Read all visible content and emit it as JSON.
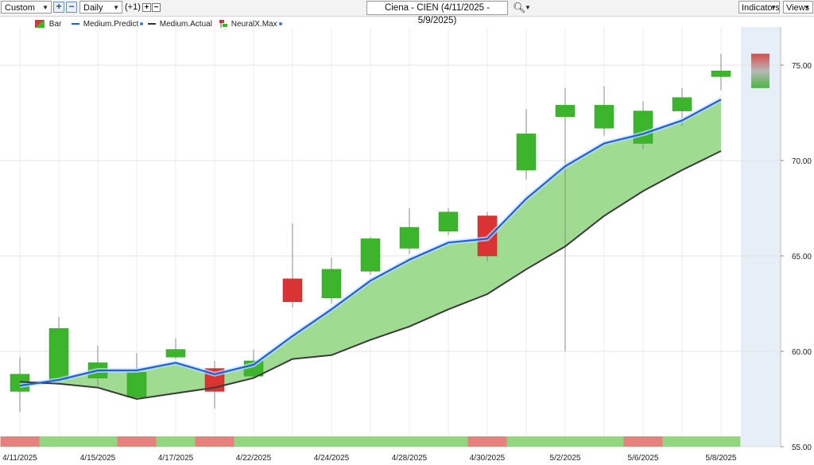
{
  "toolbar": {
    "period_select": "Custom",
    "interval_select": "Daily",
    "offset_label": "(+1)",
    "title": "Ciena - CIEN (4/11/2025 - 5/9/2025)",
    "indicators_button": "Indicators",
    "views_button": "Views"
  },
  "legend": [
    {
      "label": "Bar",
      "icon": "bar-swatch-icon"
    },
    {
      "label": "Medium.Predict",
      "color": "#1f5fe0"
    },
    {
      "label": "Medium.Actual",
      "color": "#333333"
    },
    {
      "label": "NeuralX.Max",
      "icon": "neuralx-swatch-icon"
    }
  ],
  "colors": {
    "up": "#3cb52c",
    "down": "#d93333",
    "predict": "#1f5fe0",
    "actual": "#3a3a3a",
    "band_fill": "#9ad98a",
    "signal_up": "#92d67f",
    "signal_down": "#e88080",
    "forecast_bg": "#e6eef7"
  },
  "chart_data": {
    "type": "candlestick",
    "ylim": [
      55,
      77
    ],
    "y_ticks": [
      "55.00",
      "60.00",
      "65.00",
      "70.00",
      "75.00"
    ],
    "x_tick_labels": [
      "4/11/2025",
      "4/15/2025",
      "4/17/2025",
      "4/22/2025",
      "4/24/2025",
      "4/28/2025",
      "4/30/2025",
      "5/2/2025",
      "5/6/2025",
      "5/8/2025"
    ],
    "x_tick_label_index": [
      0,
      2,
      4,
      6,
      8,
      10,
      12,
      14,
      16,
      18
    ],
    "candles": [
      {
        "o": 57.9,
        "h": 59.7,
        "l": 56.8,
        "c": 58.8
      },
      {
        "o": 58.5,
        "h": 61.8,
        "l": 58.3,
        "c": 61.2
      },
      {
        "o": 58.6,
        "h": 60.3,
        "l": 58.2,
        "c": 59.4
      },
      {
        "o": 57.6,
        "h": 59.9,
        "l": 57.5,
        "c": 58.9
      },
      {
        "o": 59.7,
        "h": 60.7,
        "l": 59.6,
        "c": 60.1
      },
      {
        "o": 59.1,
        "h": 59.5,
        "l": 57.0,
        "c": 57.9
      },
      {
        "o": 58.7,
        "h": 60.1,
        "l": 58.6,
        "c": 59.5
      },
      {
        "o": 63.8,
        "h": 66.7,
        "l": 62.3,
        "c": 62.6
      },
      {
        "o": 62.8,
        "h": 64.9,
        "l": 62.5,
        "c": 64.3
      },
      {
        "o": 64.2,
        "h": 66.0,
        "l": 64.0,
        "c": 65.9
      },
      {
        "o": 65.4,
        "h": 67.5,
        "l": 65.1,
        "c": 66.5
      },
      {
        "o": 66.3,
        "h": 67.5,
        "l": 66.1,
        "c": 67.3
      },
      {
        "o": 67.1,
        "h": 67.3,
        "l": 64.7,
        "c": 65.0
      },
      {
        "o": 69.5,
        "h": 72.7,
        "l": 69.0,
        "c": 71.4
      },
      {
        "o": 72.3,
        "h": 73.8,
        "l": 60.0,
        "c": 72.9
      },
      {
        "o": 71.7,
        "h": 73.9,
        "l": 71.3,
        "c": 72.9
      },
      {
        "o": 70.9,
        "h": 73.1,
        "l": 70.6,
        "c": 72.6
      },
      {
        "o": 72.6,
        "h": 73.8,
        "l": 71.8,
        "c": 73.3
      },
      {
        "o": 74.4,
        "h": 75.6,
        "l": 73.7,
        "c": 74.7
      }
    ],
    "series": [
      {
        "name": "Medium.Predict",
        "values": [
          58.2,
          58.5,
          59.0,
          59.0,
          59.4,
          58.8,
          59.3,
          60.8,
          62.2,
          63.7,
          64.8,
          65.7,
          65.9,
          68.0,
          69.7,
          70.9,
          71.4,
          72.1,
          73.2
        ]
      },
      {
        "name": "Medium.Actual",
        "values": [
          58.4,
          58.3,
          58.1,
          57.5,
          57.8,
          58.1,
          58.6,
          59.6,
          59.8,
          60.6,
          61.3,
          62.2,
          63.0,
          64.3,
          65.5,
          67.1,
          68.4,
          69.5,
          70.5
        ]
      }
    ],
    "forecast_range": {
      "h": 75.6,
      "l": 73.8
    },
    "signal_strip": [
      "down",
      "up",
      "up",
      "down",
      "up",
      "down",
      "up",
      "up",
      "up",
      "up",
      "up",
      "up",
      "down",
      "up",
      "up",
      "up",
      "down",
      "up",
      "up"
    ]
  }
}
